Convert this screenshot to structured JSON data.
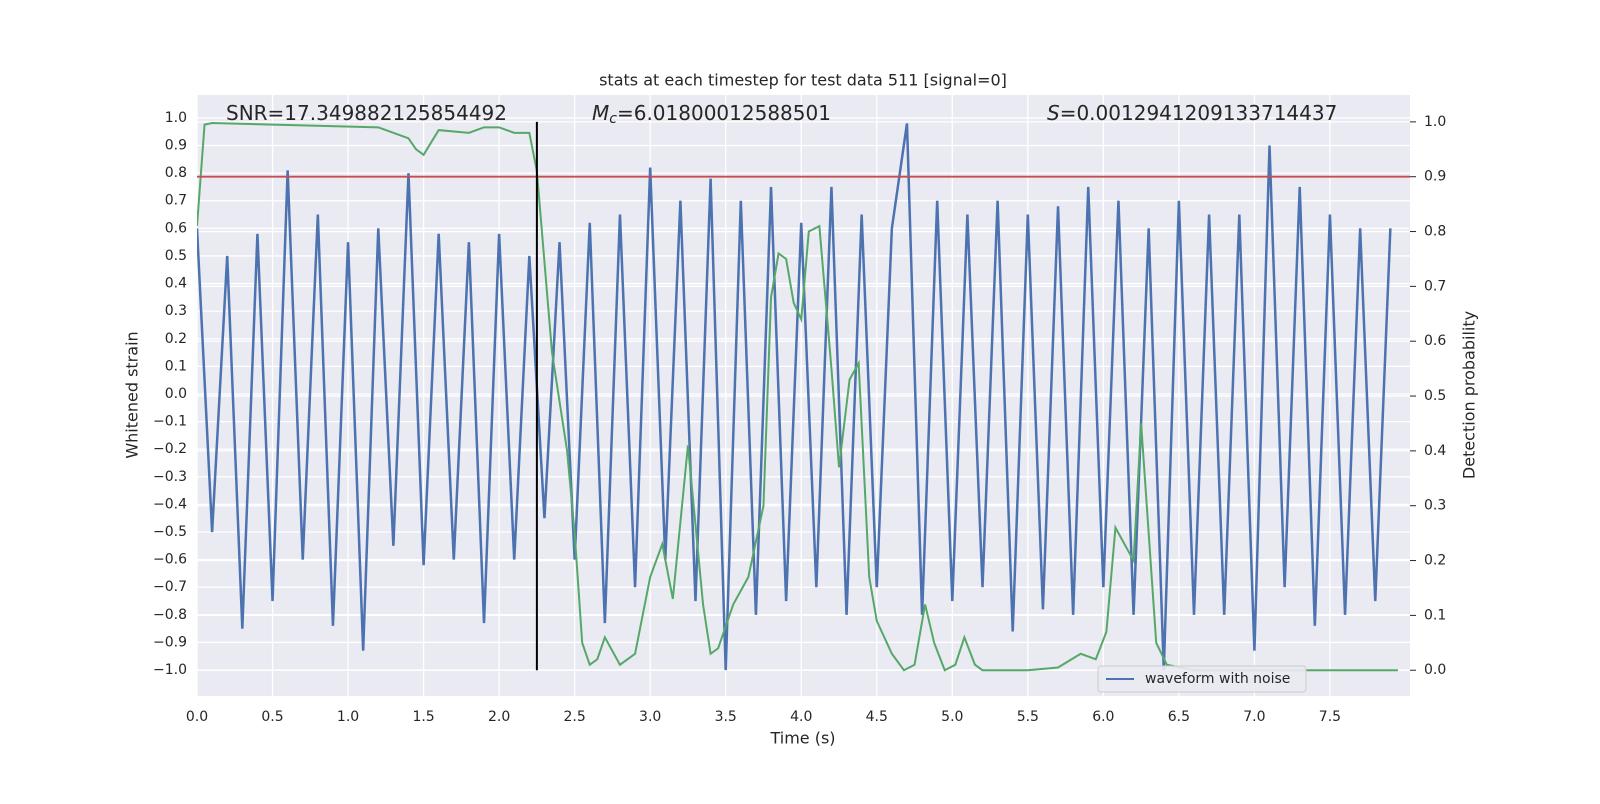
{
  "chart_data": {
    "type": "line",
    "title": "stats at each timestep for test data 511 [signal=0]",
    "xlabel": "Time (s)",
    "ylabel": "Whitened strain",
    "y2label": "Detection probability",
    "annotations": [
      {
        "text": "SNR=17.349882125854492"
      },
      {
        "symbol": "M",
        "subscript": "c",
        "text": "=6.01800012588501"
      },
      {
        "symbol": "S",
        "text": "=0.0012941209133714437"
      }
    ],
    "xlim": [
      0,
      8.03
    ],
    "ylim": [
      -1.094,
      1.083
    ],
    "y2lim": [
      -0.047,
      1.049
    ],
    "xticks": [
      {
        "value": 0,
        "label": "0.0"
      },
      {
        "value": 0.5,
        "label": "0.5"
      },
      {
        "value": 1,
        "label": "1.0"
      },
      {
        "value": 1.5,
        "label": "1.5"
      },
      {
        "value": 2,
        "label": "2.0"
      },
      {
        "value": 2.5,
        "label": "2.5"
      },
      {
        "value": 3,
        "label": "3.0"
      },
      {
        "value": 3.5,
        "label": "3.5"
      },
      {
        "value": 4,
        "label": "4.0"
      },
      {
        "value": 4.5,
        "label": "4.5"
      },
      {
        "value": 5,
        "label": "5.0"
      },
      {
        "value": 5.5,
        "label": "5.5"
      },
      {
        "value": 6,
        "label": "6.0"
      },
      {
        "value": 6.5,
        "label": "6.5"
      },
      {
        "value": 7,
        "label": "7.0"
      },
      {
        "value": 7.5,
        "label": "7.5"
      }
    ],
    "yticks": [
      {
        "value": -1,
        "label": "−1.0"
      },
      {
        "value": -0.9,
        "label": "−0.9"
      },
      {
        "value": -0.8,
        "label": "−0.8"
      },
      {
        "value": -0.7,
        "label": "−0.7"
      },
      {
        "value": -0.6,
        "label": "−0.6"
      },
      {
        "value": -0.5,
        "label": "−0.5"
      },
      {
        "value": -0.4,
        "label": "−0.4"
      },
      {
        "value": -0.3,
        "label": "−0.3"
      },
      {
        "value": -0.2,
        "label": "−0.2"
      },
      {
        "value": -0.1,
        "label": "−0.1"
      },
      {
        "value": 0,
        "label": "0.0"
      },
      {
        "value": 0.1,
        "label": "0.1"
      },
      {
        "value": 0.2,
        "label": "0.2"
      },
      {
        "value": 0.3,
        "label": "0.3"
      },
      {
        "value": 0.4,
        "label": "0.4"
      },
      {
        "value": 0.5,
        "label": "0.5"
      },
      {
        "value": 0.6,
        "label": "0.6"
      },
      {
        "value": 0.7,
        "label": "0.7"
      },
      {
        "value": 0.8,
        "label": "0.8"
      },
      {
        "value": 0.9,
        "label": "0.9"
      },
      {
        "value": 1,
        "label": "1.0"
      }
    ],
    "y2ticks": [
      {
        "value": 0,
        "label": "0.0"
      },
      {
        "value": 0.1,
        "label": "0.1"
      },
      {
        "value": 0.2,
        "label": "0.2"
      },
      {
        "value": 0.3,
        "label": "0.3"
      },
      {
        "value": 0.4,
        "label": "0.4"
      },
      {
        "value": 0.5,
        "label": "0.5"
      },
      {
        "value": 0.6,
        "label": "0.6"
      },
      {
        "value": 0.7,
        "label": "0.7"
      },
      {
        "value": 0.8,
        "label": "0.8"
      },
      {
        "value": 0.9,
        "label": "0.9"
      },
      {
        "value": 1,
        "label": "1.0"
      }
    ],
    "grid": true,
    "legend": "lower right",
    "series": [
      {
        "name": "waveform with noise",
        "color": "#4c72b0",
        "x": [
          0.0,
          0.1,
          0.2,
          0.3,
          0.4,
          0.5,
          0.6,
          0.7,
          0.8,
          0.9,
          1.0,
          1.1,
          1.2,
          1.3,
          1.4,
          1.5,
          1.6,
          1.7,
          1.8,
          1.9,
          2.0,
          2.1,
          2.2,
          2.3,
          2.4,
          2.5,
          2.6,
          2.7,
          2.8,
          2.9,
          3.0,
          3.1,
          3.2,
          3.3,
          3.4,
          3.5,
          3.6,
          3.7,
          3.8,
          3.9,
          4.0,
          4.1,
          4.2,
          4.3,
          4.4,
          4.5,
          4.6,
          4.7,
          4.8,
          4.9,
          5.0,
          5.1,
          5.2,
          5.3,
          5.4,
          5.5,
          5.6,
          5.7,
          5.8,
          5.9,
          6.0,
          6.1,
          6.2,
          6.3,
          6.4,
          6.5,
          6.6,
          6.7,
          6.8,
          6.9,
          7.0,
          7.1,
          7.2,
          7.3,
          7.4,
          7.5,
          7.6,
          7.7,
          7.8,
          7.9
        ],
        "values": [
          0.6,
          -0.5,
          0.5,
          -0.85,
          0.58,
          -0.75,
          0.81,
          -0.6,
          0.65,
          -0.84,
          0.55,
          -0.93,
          0.6,
          -0.55,
          0.8,
          -0.62,
          0.58,
          -0.6,
          0.55,
          -0.83,
          0.58,
          -0.6,
          0.5,
          -0.45,
          0.55,
          -0.6,
          0.62,
          -0.83,
          0.65,
          -0.7,
          0.82,
          -0.6,
          0.7,
          -0.75,
          0.78,
          -1.0,
          0.7,
          -0.8,
          0.75,
          -0.75,
          0.62,
          -0.7,
          0.75,
          -0.8,
          0.65,
          -0.7,
          0.6,
          0.98,
          -0.8,
          0.7,
          -0.75,
          0.65,
          -0.7,
          0.7,
          -0.86,
          0.65,
          -0.78,
          0.68,
          -0.8,
          0.75,
          -0.7,
          0.7,
          -0.8,
          0.6,
          -1.0,
          0.7,
          -0.8,
          0.65,
          -0.8,
          0.65,
          -0.93,
          0.9,
          -0.7,
          0.75,
          -0.84,
          0.65,
          -0.8,
          0.6,
          -0.75,
          0.6
        ]
      },
      {
        "color": "#55a868",
        "axis": "y2",
        "x": [
          0,
          0.05,
          0.1,
          1.2,
          1.4,
          1.45,
          1.5,
          1.6,
          1.8,
          1.9,
          2.0,
          2.1,
          2.2,
          2.25,
          2.35,
          2.45,
          2.5,
          2.55,
          2.6,
          2.65,
          2.7,
          2.8,
          2.9,
          3.0,
          3.08,
          3.15,
          3.25,
          3.35,
          3.4,
          3.45,
          3.55,
          3.65,
          3.75,
          3.8,
          3.85,
          3.9,
          3.95,
          4.0,
          4.05,
          4.12,
          4.2,
          4.25,
          4.32,
          4.38,
          4.45,
          4.5,
          4.6,
          4.68,
          4.75,
          4.82,
          4.88,
          4.95,
          5.02,
          5.08,
          5.15,
          5.2,
          5.3,
          5.5,
          5.7,
          5.85,
          5.95,
          6.02,
          6.08,
          6.2,
          6.25,
          6.35,
          6.42,
          6.6,
          6.9,
          7.5,
          7.95
        ],
        "values": [
          0.81,
          0.995,
          0.998,
          0.99,
          0.97,
          0.95,
          0.94,
          0.985,
          0.98,
          0.99,
          0.99,
          0.98,
          0.98,
          0.91,
          0.58,
          0.4,
          0.25,
          0.05,
          0.01,
          0.02,
          0.06,
          0.01,
          0.03,
          0.17,
          0.23,
          0.13,
          0.41,
          0.12,
          0.03,
          0.04,
          0.12,
          0.17,
          0.3,
          0.68,
          0.76,
          0.75,
          0.67,
          0.64,
          0.8,
          0.81,
          0.55,
          0.37,
          0.53,
          0.56,
          0.17,
          0.09,
          0.03,
          0.0,
          0.01,
          0.12,
          0.05,
          0.0,
          0.01,
          0.06,
          0.01,
          0.0,
          0.0,
          0.0,
          0.005,
          0.03,
          0.02,
          0.07,
          0.26,
          0.2,
          0.45,
          0.05,
          0.01,
          0.0,
          0.0,
          0.0,
          0.0
        ]
      }
    ],
    "hlines": [
      {
        "value": 0.9,
        "axis": "y2",
        "color": "#c44e52"
      }
    ],
    "vlines": [
      {
        "x": 2.25,
        "range": [
          0,
          1
        ],
        "axis": "y2",
        "color": "#000000"
      }
    ]
  }
}
